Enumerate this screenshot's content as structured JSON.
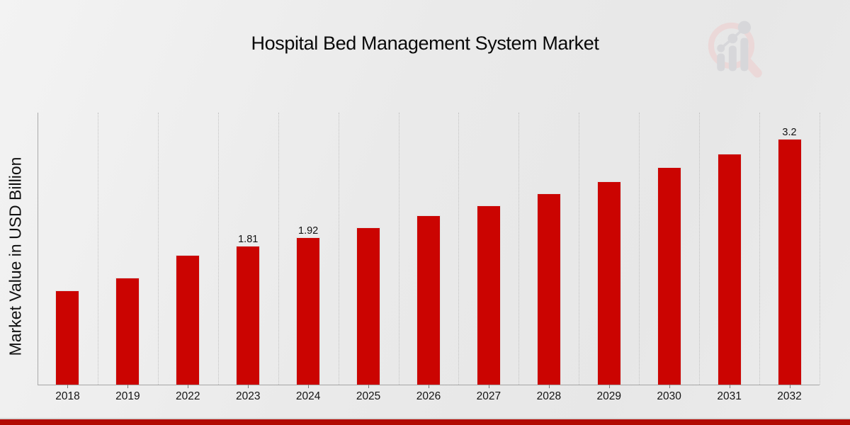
{
  "title": "Hospital Bed Management System Market",
  "ylabel": "Market Value in USD Billion",
  "colors": {
    "bar": "#cb0401",
    "banner": "#b20a02",
    "background": "#eaeaea",
    "gridline": "#c2c2c2",
    "text": "#111111"
  },
  "chart_data": {
    "type": "bar",
    "title": "Hospital Bed Management System Market",
    "xlabel": "",
    "ylabel": "Market Value in USD Billion",
    "categories": [
      "2018",
      "2019",
      "2022",
      "2023",
      "2024",
      "2025",
      "2026",
      "2027",
      "2028",
      "2029",
      "2030",
      "2031",
      "2032"
    ],
    "values": [
      1.23,
      1.39,
      1.69,
      1.81,
      1.92,
      2.05,
      2.2,
      2.33,
      2.49,
      2.65,
      2.83,
      3.01,
      3.2
    ],
    "data_labels": [
      "",
      "",
      "",
      "1.81",
      "1.92",
      "",
      "",
      "",
      "",
      "",
      "",
      "",
      "3.2"
    ],
    "ylim": [
      0,
      3.54
    ],
    "grid": "vertical-dotted",
    "legend": "none",
    "y_axis_ticks": "none"
  },
  "logo": {
    "name": "magnifier-bar-chart-logo"
  },
  "footer": {
    "banner": ""
  }
}
